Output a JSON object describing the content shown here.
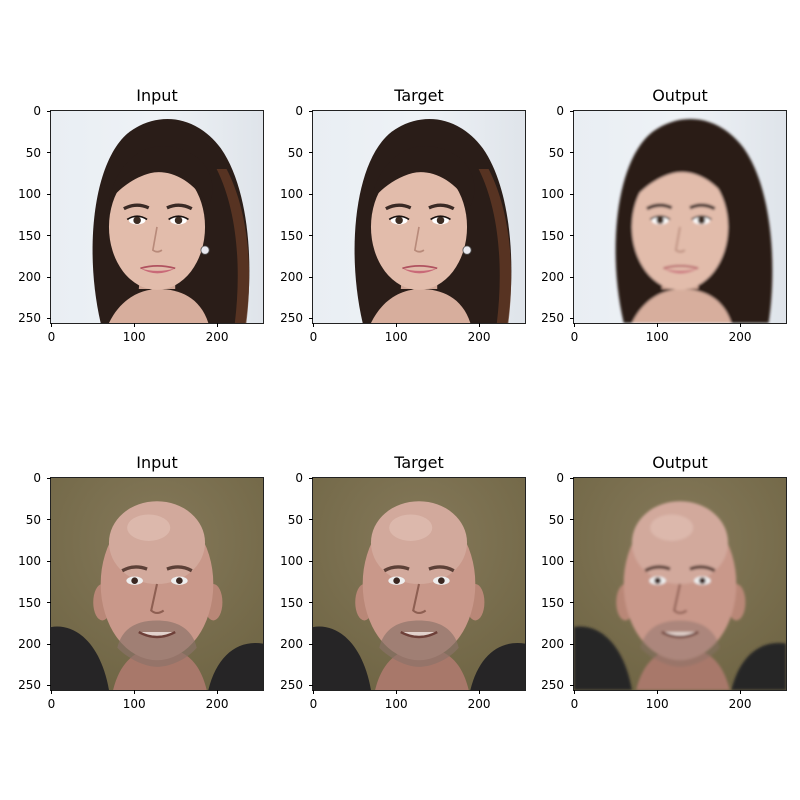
{
  "rows": [
    {
      "panels": [
        {
          "title": "Input",
          "subject": "smiling-woman-long-dark-hair",
          "photo_style": "sharp"
        },
        {
          "title": "Target",
          "subject": "smiling-woman-long-dark-hair",
          "photo_style": "sharp"
        },
        {
          "title": "Output",
          "subject": "smiling-woman-long-dark-hair",
          "photo_style": "smooth-reconstruction"
        }
      ]
    },
    {
      "panels": [
        {
          "title": "Input",
          "subject": "smiling-bald-man-stubble",
          "photo_style": "sharp"
        },
        {
          "title": "Target",
          "subject": "smiling-bald-man-stubble",
          "photo_style": "sharp"
        },
        {
          "title": "Output",
          "subject": "smiling-bald-man-stubble",
          "photo_style": "smooth-reconstruction"
        }
      ]
    }
  ],
  "axes": {
    "y_ticks": [
      "0",
      "50",
      "100",
      "150",
      "200",
      "250"
    ],
    "x_ticks": [
      "0",
      "100",
      "200"
    ],
    "y_values": [
      0,
      50,
      100,
      150,
      200,
      250
    ],
    "x_values": [
      0,
      100,
      200
    ],
    "extent": 256
  },
  "colors": {
    "woman_bg": "#eef2f6",
    "woman_hair": "#2a1d18",
    "woman_skin": "#e2bcab",
    "man_bg": "#6e6443",
    "man_skin": "#c9988a",
    "man_jacket": "#262526"
  }
}
